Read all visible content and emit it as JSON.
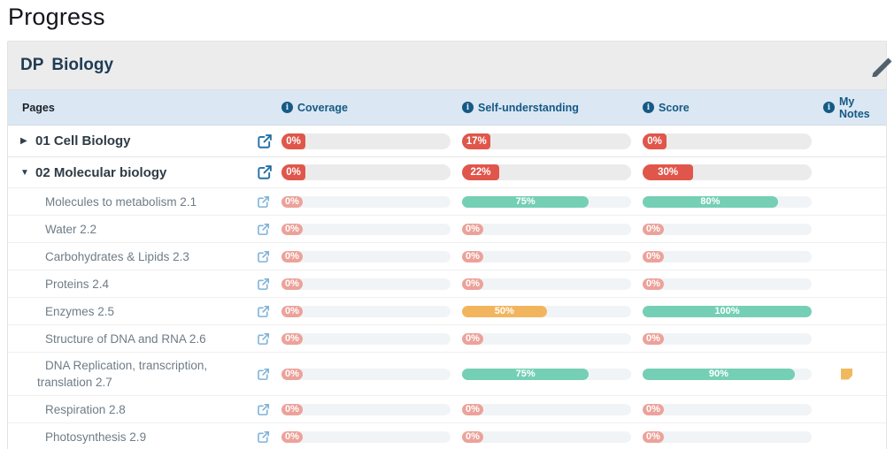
{
  "page": {
    "title": "Progress"
  },
  "panel": {
    "program": "DP",
    "course": "Biology"
  },
  "columns": {
    "pages": "Pages",
    "coverage": "Coverage",
    "self_understanding": "Self-understanding",
    "score": "Score",
    "my_notes": "My Notes"
  },
  "colors": {
    "red": "#e0564b",
    "red_faded": "#eca29a",
    "teal": "#74cfb5",
    "orange": "#f2b55e",
    "parent_track": "#ebebeb",
    "sub_track": "#f1f4f6",
    "header_blue": "#155a85",
    "note_yellow": "#f0b95e",
    "link_blue_parent": "#2471a3",
    "link_blue_sub": "#7fb3d8"
  },
  "rows": [
    {
      "type": "parent",
      "expander": "collapsed",
      "label": "01 Cell Biology",
      "bars": {
        "coverage": {
          "label": "0%",
          "pct": 0,
          "color": "red"
        },
        "self_understanding": {
          "label": "17%",
          "pct": 17,
          "color": "red"
        },
        "score": {
          "label": "0%",
          "pct": 0,
          "color": "red"
        }
      },
      "note": false
    },
    {
      "type": "parent",
      "expander": "expanded",
      "label": "02 Molecular biology",
      "bars": {
        "coverage": {
          "label": "0%",
          "pct": 0,
          "color": "red"
        },
        "self_understanding": {
          "label": "22%",
          "pct": 22,
          "color": "red"
        },
        "score": {
          "label": "30%",
          "pct": 30,
          "color": "red"
        }
      },
      "note": false
    },
    {
      "type": "sub",
      "label": "Molecules to metabolism 2.1",
      "bars": {
        "coverage": {
          "label": "0%",
          "pct": 0,
          "color": "red_faded"
        },
        "self_understanding": {
          "label": "75%",
          "pct": 75,
          "color": "teal"
        },
        "score": {
          "label": "80%",
          "pct": 80,
          "color": "teal"
        }
      },
      "note": false
    },
    {
      "type": "sub",
      "label": "Water 2.2",
      "bars": {
        "coverage": {
          "label": "0%",
          "pct": 0,
          "color": "red_faded"
        },
        "self_understanding": {
          "label": "0%",
          "pct": 0,
          "color": "red_faded"
        },
        "score": {
          "label": "0%",
          "pct": 0,
          "color": "red_faded"
        }
      },
      "note": false
    },
    {
      "type": "sub",
      "label": "Carbohydrates & Lipids 2.3",
      "bars": {
        "coverage": {
          "label": "0%",
          "pct": 0,
          "color": "red_faded"
        },
        "self_understanding": {
          "label": "0%",
          "pct": 0,
          "color": "red_faded"
        },
        "score": {
          "label": "0%",
          "pct": 0,
          "color": "red_faded"
        }
      },
      "note": false
    },
    {
      "type": "sub",
      "label": "Proteins 2.4",
      "bars": {
        "coverage": {
          "label": "0%",
          "pct": 0,
          "color": "red_faded"
        },
        "self_understanding": {
          "label": "0%",
          "pct": 0,
          "color": "red_faded"
        },
        "score": {
          "label": "0%",
          "pct": 0,
          "color": "red_faded"
        }
      },
      "note": false
    },
    {
      "type": "sub",
      "label": "Enzymes 2.5",
      "bars": {
        "coverage": {
          "label": "0%",
          "pct": 0,
          "color": "red_faded"
        },
        "self_understanding": {
          "label": "50%",
          "pct": 50,
          "color": "orange"
        },
        "score": {
          "label": "100%",
          "pct": 100,
          "color": "teal"
        }
      },
      "note": false
    },
    {
      "type": "sub",
      "label": "Structure of DNA and RNA 2.6",
      "bars": {
        "coverage": {
          "label": "0%",
          "pct": 0,
          "color": "red_faded"
        },
        "self_understanding": {
          "label": "0%",
          "pct": 0,
          "color": "red_faded"
        },
        "score": {
          "label": "0%",
          "pct": 0,
          "color": "red_faded"
        }
      },
      "note": false
    },
    {
      "type": "sub",
      "tall": true,
      "label": "DNA Replication, transcription, translation 2.7",
      "bars": {
        "coverage": {
          "label": "0%",
          "pct": 0,
          "color": "red_faded"
        },
        "self_understanding": {
          "label": "75%",
          "pct": 75,
          "color": "teal"
        },
        "score": {
          "label": "90%",
          "pct": 90,
          "color": "teal"
        }
      },
      "note": true
    },
    {
      "type": "sub",
      "label": "Respiration 2.8",
      "bars": {
        "coverage": {
          "label": "0%",
          "pct": 0,
          "color": "red_faded"
        },
        "self_understanding": {
          "label": "0%",
          "pct": 0,
          "color": "red_faded"
        },
        "score": {
          "label": "0%",
          "pct": 0,
          "color": "red_faded"
        }
      },
      "note": false
    },
    {
      "type": "sub",
      "label": "Photosynthesis 2.9",
      "bars": {
        "coverage": {
          "label": "0%",
          "pct": 0,
          "color": "red_faded"
        },
        "self_understanding": {
          "label": "0%",
          "pct": 0,
          "color": "red_faded"
        },
        "score": {
          "label": "0%",
          "pct": 0,
          "color": "red_faded"
        }
      },
      "note": false
    }
  ]
}
